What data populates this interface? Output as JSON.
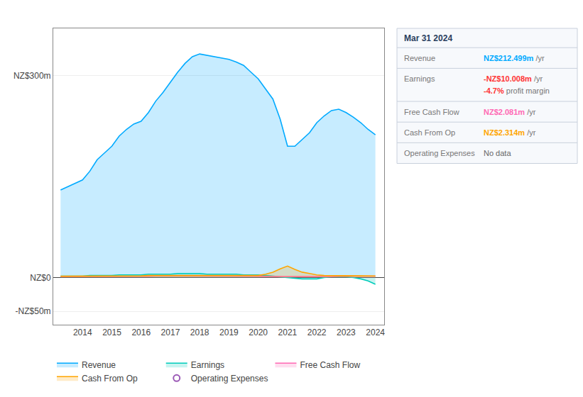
{
  "chart_data": {
    "type": "area",
    "x": [
      2013.25,
      2013.5,
      2013.75,
      2014.0,
      2014.25,
      2014.5,
      2014.75,
      2015.0,
      2015.25,
      2015.5,
      2015.75,
      2016.0,
      2016.25,
      2016.5,
      2016.75,
      2017.0,
      2017.25,
      2017.5,
      2017.75,
      2018.0,
      2018.25,
      2018.5,
      2018.75,
      2019.0,
      2019.25,
      2019.5,
      2019.75,
      2020.0,
      2020.25,
      2020.5,
      2020.75,
      2021.0,
      2021.25,
      2021.5,
      2021.75,
      2022.0,
      2022.25,
      2022.5,
      2022.75,
      2023.0,
      2023.25,
      2023.5,
      2023.75,
      2024.0
    ],
    "series": [
      {
        "name": "Revenue",
        "color": "#00aaff",
        "values": [
          130,
          135,
          140,
          145,
          158,
          175,
          185,
          195,
          210,
          220,
          228,
          232,
          245,
          262,
          275,
          290,
          305,
          318,
          328,
          332,
          330,
          328,
          326,
          324,
          320,
          315,
          305,
          295,
          280,
          265,
          235,
          195,
          195,
          205,
          215,
          230,
          240,
          248,
          250,
          245,
          238,
          230,
          220,
          212
        ]
      },
      {
        "name": "Earnings",
        "color": "#00ccbb",
        "values": [
          2,
          2,
          2,
          2,
          3,
          3,
          3,
          3,
          4,
          4,
          4,
          4,
          5,
          5,
          5,
          5,
          6,
          6,
          6,
          6,
          5,
          5,
          5,
          5,
          5,
          4,
          4,
          4,
          3,
          2,
          1,
          0,
          -1,
          -2,
          -2,
          -2,
          0,
          1,
          1,
          1,
          0,
          -2,
          -5,
          -10
        ]
      },
      {
        "name": "Free Cash Flow",
        "color": "#ff69b4",
        "values": [
          1.5,
          1.5,
          1.5,
          1.5,
          1.5,
          1.5,
          1.5,
          1.5,
          2,
          2,
          2,
          2,
          2,
          2.5,
          2.5,
          2.5,
          2.5,
          2.5,
          2.5,
          2.5,
          2.5,
          2.5,
          2.5,
          2.5,
          2,
          2,
          2,
          2,
          1.5,
          1.5,
          1.5,
          1.5,
          1,
          1,
          1,
          1,
          1.5,
          1.5,
          2,
          2,
          2,
          2,
          2,
          2.081
        ]
      },
      {
        "name": "Cash From Op",
        "color": "#ffa500",
        "values": [
          2,
          2,
          2,
          2,
          2,
          2,
          2,
          2,
          2.5,
          2.5,
          2.5,
          2.5,
          3,
          3,
          3,
          3,
          3.5,
          3.5,
          3.5,
          3.5,
          3,
          3,
          3,
          3,
          3,
          3,
          3,
          3,
          5,
          8,
          13,
          17,
          12,
          8,
          6,
          4,
          3,
          3,
          3,
          3,
          2.5,
          2.5,
          2.5,
          2.314
        ]
      },
      {
        "name": "Operating Expenses",
        "color": "#9b59b6",
        "marker": "circle-open",
        "values": [
          null,
          null,
          null,
          null,
          null,
          null,
          null,
          null,
          null,
          null,
          null,
          null,
          null,
          null,
          null,
          null,
          null,
          null,
          null,
          null,
          null,
          null,
          null,
          null,
          null,
          null,
          null,
          null,
          null,
          null,
          null,
          null,
          null,
          null,
          null,
          null,
          null,
          null,
          null,
          null,
          null,
          null,
          null,
          null
        ]
      }
    ],
    "xlim": [
      2013.0,
      2024.3
    ],
    "xticks": [
      2014,
      2015,
      2016,
      2017,
      2018,
      2019,
      2020,
      2021,
      2022,
      2023,
      2024
    ],
    "ylim": [
      -70,
      370
    ],
    "yticks": [
      {
        "value": -50,
        "label": "-NZ$50m"
      },
      {
        "value": 0,
        "label": "NZ$0"
      },
      {
        "value": 300,
        "label": "NZ$300m"
      }
    ],
    "grid": "y",
    "annotations": [
      {
        "text": "Mar 31 2024"
      },
      {
        "label": "Revenue",
        "value": "NZ$212.499m",
        "unit": " /yr",
        "color": "#00aaff"
      },
      {
        "label": "Earnings",
        "value": "-NZ$10.008m",
        "unit": " /yr",
        "color": "#ff3333",
        "extra": "-4.7%",
        "extra_suffix": " profit margin",
        "extra_color": "#ff3333"
      },
      {
        "label": "Free Cash Flow",
        "value": "NZ$2.081m",
        "unit": " /yr",
        "color": "#ff69b4"
      },
      {
        "label": "Cash From Op",
        "value": "NZ$2.314m",
        "unit": " /yr",
        "color": "#ffa500"
      },
      {
        "label": "Operating Expenses",
        "value": "No data",
        "unit": "",
        "color": "#666666"
      }
    ]
  }
}
